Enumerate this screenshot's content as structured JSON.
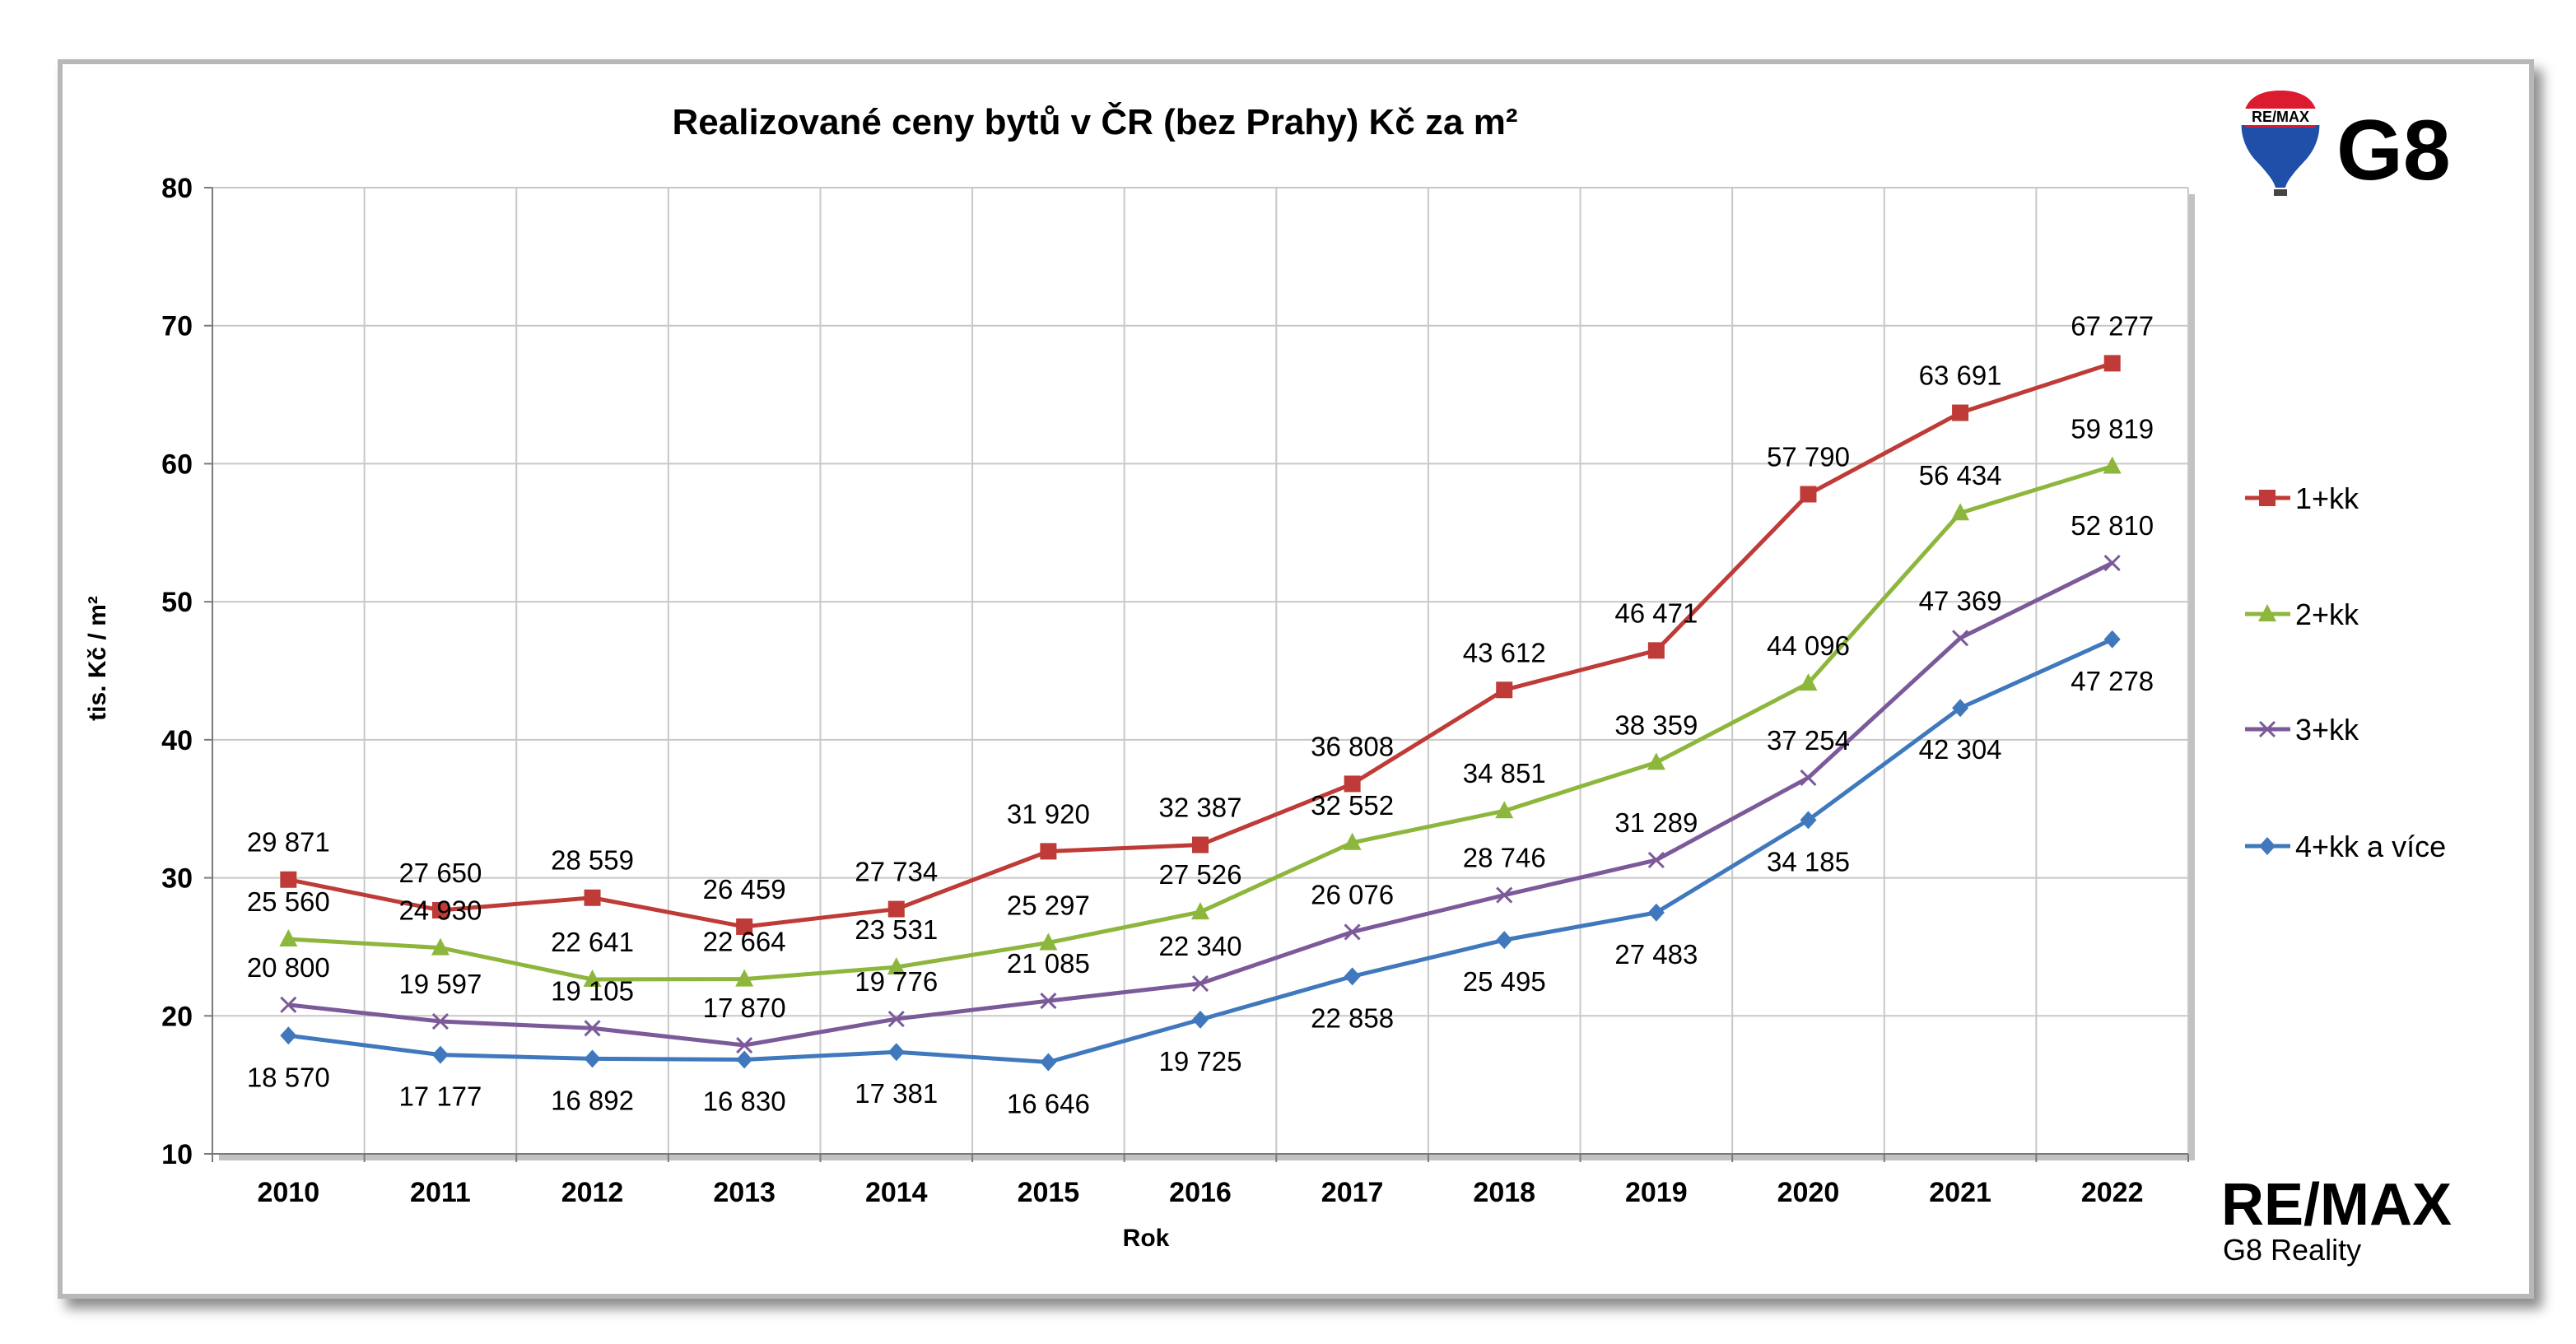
{
  "chart_data": {
    "type": "line",
    "title": "Realizované ceny bytů v ČR (bez Prahy) Kč za m²",
    "xlabel": "Rok",
    "ylabel": "tis. Kč / m²",
    "ylim": [
      10,
      80
    ],
    "yticks": [
      "10",
      "20",
      "30",
      "40",
      "50",
      "60",
      "70",
      "80"
    ],
    "grid": true,
    "legend_position": "right",
    "categories": [
      "2010",
      "2011",
      "2012",
      "2013",
      "2014",
      "2015",
      "2016",
      "2017",
      "2018",
      "2019",
      "2020",
      "2021",
      "2022"
    ],
    "series": [
      {
        "name": "1+kk",
        "color": "#be3b37",
        "marker": "square",
        "values": [
          29.871,
          27.65,
          28.559,
          26.459,
          27.734,
          31.92,
          32.387,
          36.808,
          43.612,
          46.471,
          57.79,
          63.691,
          67.277
        ],
        "labels": [
          "29 871",
          "27 650",
          "28 559",
          "26 459",
          "27 734",
          "31 920",
          "32 387",
          "36 808",
          "43 612",
          "46 471",
          "57 790",
          "63 691",
          "67 277"
        ]
      },
      {
        "name": "2+kk",
        "color": "#8db63c",
        "marker": "triangle",
        "values": [
          25.56,
          24.93,
          22.641,
          22.664,
          23.531,
          25.297,
          27.526,
          32.552,
          34.851,
          38.359,
          44.096,
          56.434,
          59.819
        ],
        "labels": [
          "25 560",
          "24 930",
          "22 641",
          "22 664",
          "23 531",
          "25 297",
          "27 526",
          "32 552",
          "34 851",
          "38 359",
          "44 096",
          "56 434",
          "59 819"
        ]
      },
      {
        "name": "3+kk",
        "color": "#7c5a9a",
        "marker": "x",
        "values": [
          20.8,
          19.597,
          19.105,
          17.87,
          19.776,
          21.085,
          22.34,
          26.076,
          28.746,
          31.289,
          37.254,
          47.369,
          52.81
        ],
        "labels": [
          "20 800",
          "19 597",
          "19 105",
          "17 870",
          "19 776",
          "21 085",
          "22 340",
          "26 076",
          "28 746",
          "31 289",
          "37 254",
          "47 369",
          "52 810"
        ]
      },
      {
        "name": "4+kk a více",
        "color": "#3f78bd",
        "marker": "diamond",
        "values": [
          18.57,
          17.177,
          16.892,
          16.83,
          17.381,
          16.646,
          19.725,
          22.858,
          25.495,
          27.483,
          34.185,
          42.304,
          47.278
        ],
        "labels": [
          "18 570",
          "17 177",
          "16 892",
          "16 830",
          "17 381",
          "16 646",
          "19 725",
          "22 858",
          "25 495",
          "27 483",
          "34 185",
          "42 304",
          "47 278"
        ]
      }
    ]
  },
  "branding": {
    "balloon_text": "RE/MAX",
    "g8_text": "G8",
    "remax_word": "RE/MAX",
    "remax_sub": "G8 Reality",
    "remax_red": "#dc1c2e",
    "remax_blue": "#003da5"
  }
}
